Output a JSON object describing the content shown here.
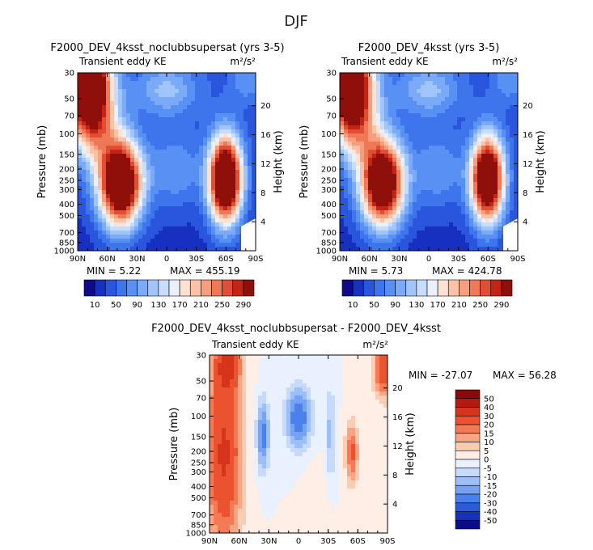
{
  "figure": {
    "season_title": "DJF"
  },
  "panels": [
    {
      "title": "F2000_DEV_4ksst_noclubbsupersat (yrs 3-5)",
      "left_label": "Transient eddy KE",
      "units": "m²/s²",
      "min_text": "MIN =    5.22",
      "max_text": "MAX = 455.19"
    },
    {
      "title": "F2000_DEV_4ksst (yrs 3-5)",
      "left_label": "Transient eddy KE",
      "units": "m²/s²",
      "min_text": "MIN =    5.73",
      "max_text": "MAX = 424.78"
    },
    {
      "title": "F2000_DEV_4ksst_noclubbsupersat - F2000_DEV_4ksst",
      "left_label": "Transient eddy KE",
      "units": "m²/s²",
      "min_text": "MIN = -27.07",
      "max_text": "MAX =   56.28"
    }
  ],
  "chart_data": [
    {
      "type": "heatmap",
      "panel": "top-left",
      "title": "F2000_DEV_4ksst_noclubbsupersat (yrs 3-5)",
      "xlabel": "",
      "ylabel": "Pressure (mb)",
      "ylabel_right": "Height (km)",
      "x_ticks": [
        "90N",
        "60N",
        "30N",
        "0",
        "30S",
        "60S",
        "90S"
      ],
      "x_range": [
        90,
        -90
      ],
      "y_ticks": [
        30,
        50,
        70,
        100,
        150,
        200,
        250,
        300,
        400,
        500,
        700,
        850,
        1000
      ],
      "y_range": [
        30,
        1000
      ],
      "y_scale": "log",
      "right_ticks": [
        4,
        8,
        12,
        16,
        20
      ],
      "features": [
        {
          "lat": 48,
          "p": 270,
          "value": 400
        },
        {
          "lat": -58,
          "p": 260,
          "value": 440
        },
        {
          "lat": 85,
          "p": 35,
          "value": 455
        }
      ],
      "min": 5.22,
      "max": 455.19,
      "colorbar_labels": [
        "10",
        "50",
        "90",
        "130",
        "170",
        "210",
        "250",
        "290"
      ]
    },
    {
      "type": "heatmap",
      "panel": "top-right",
      "title": "F2000_DEV_4ksst (yrs 3-5)",
      "ylabel": "Pressure (mb)",
      "ylabel_right": "Height (km)",
      "x_ticks": [
        "90N",
        "60N",
        "30N",
        "0",
        "30S",
        "60S",
        "90S"
      ],
      "y_ticks": [
        30,
        50,
        70,
        100,
        150,
        200,
        250,
        300,
        400,
        500,
        700,
        850,
        1000
      ],
      "right_ticks": [
        4,
        8,
        12,
        16,
        20
      ],
      "features": [
        {
          "lat": 48,
          "p": 270,
          "value": 380
        },
        {
          "lat": -58,
          "p": 260,
          "value": 410
        },
        {
          "lat": 85,
          "p": 35,
          "value": 425
        }
      ],
      "min": 5.73,
      "max": 424.78,
      "colorbar_labels": [
        "10",
        "50",
        "90",
        "130",
        "170",
        "210",
        "250",
        "290"
      ]
    },
    {
      "type": "heatmap",
      "panel": "bottom",
      "title": "F2000_DEV_4ksst_noclubbsupersat - F2000_DEV_4ksst",
      "ylabel": "Pressure (mb)",
      "ylabel_right": "Height (km)",
      "x_ticks": [
        "90N",
        "60N",
        "30N",
        "0",
        "30S",
        "60S",
        "90S"
      ],
      "y_ticks": [
        30,
        50,
        70,
        100,
        150,
        200,
        250,
        300,
        400,
        500,
        700,
        850,
        1000
      ],
      "right_ticks": [
        4,
        8,
        12,
        16,
        20
      ],
      "features": [
        {
          "lat": 82,
          "p": 200,
          "value": 30
        },
        {
          "lat": 78,
          "p": 35,
          "value": 56
        },
        {
          "lat": 40,
          "p": 200,
          "value": -25
        },
        {
          "lat": 0,
          "p": 110,
          "value": -27
        },
        {
          "lat": -55,
          "p": 250,
          "value": 25
        },
        {
          "lat": -88,
          "p": 40,
          "value": 35
        }
      ],
      "min": -27.07,
      "max": 56.28,
      "colorbar_labels": [
        "50",
        "40",
        "30",
        "20",
        "15",
        "10",
        "5",
        "0",
        "-5",
        "-10",
        "-15",
        "-20",
        "-30",
        "-40",
        "-50"
      ]
    }
  ],
  "colors": {
    "seq": [
      "#0f0a8a",
      "#1830c0",
      "#2a55dd",
      "#3e74ec",
      "#5890f4",
      "#7aaaf8",
      "#a0c5fb",
      "#c8dcfd",
      "#eaf1fe",
      "#fde2d4",
      "#fbc2a6",
      "#f79f7c",
      "#ef7857",
      "#e04e33",
      "#c42414",
      "#8f0f0a"
    ],
    "div": [
      "#8a0a0a",
      "#b51a10",
      "#d7341c",
      "#ea5230",
      "#f47a55",
      "#f9a583",
      "#fccbb3",
      "#feeee6",
      "#e9f1fe",
      "#c5dafd",
      "#9dbff9",
      "#76a2f3",
      "#4c80ea",
      "#2a5bd8",
      "#1633b5",
      "#0b0d86"
    ]
  }
}
